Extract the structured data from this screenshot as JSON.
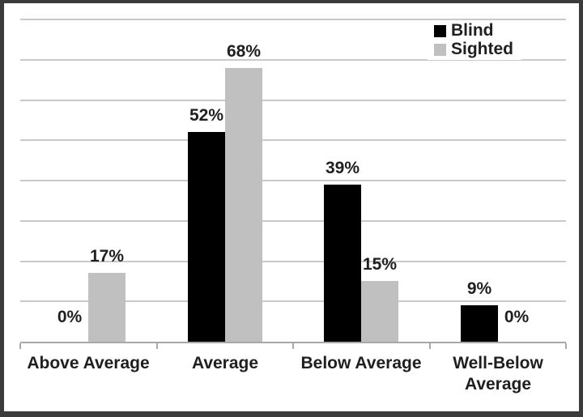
{
  "frame": {
    "border_color": "#3b3b3b",
    "background": "#ffffff"
  },
  "legend": {
    "position": "top-right",
    "items": [
      {
        "label": "Blind",
        "color": "#000000"
      },
      {
        "label": "Sighted",
        "color": "#c0c0c0"
      }
    ]
  },
  "chart_data": {
    "type": "bar",
    "title": "",
    "xlabel": "",
    "ylabel": "",
    "categories": [
      "Above Average",
      "Average",
      "Below Average",
      "Well-Below Average"
    ],
    "series": [
      {
        "name": "Blind",
        "color": "#000000",
        "values": [
          0,
          52,
          39,
          9
        ]
      },
      {
        "name": "Sighted",
        "color": "#c0c0c0",
        "values": [
          17,
          68,
          15,
          0
        ]
      }
    ],
    "value_unit": "%",
    "data_labels": true,
    "ylim": [
      0,
      80
    ],
    "grid": true,
    "grid_interval": 10,
    "gridline_color": "#c9c9c9",
    "axis_color": "#a8a8a8",
    "legend_position": "top-right"
  }
}
